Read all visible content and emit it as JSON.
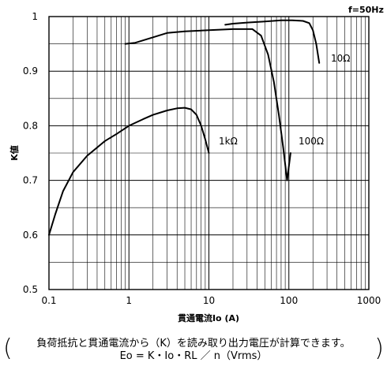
{
  "chart_data": {
    "type": "line",
    "x_scale": "log",
    "xlim": [
      0.1,
      1000
    ],
    "ylim": [
      0.5,
      1.0
    ],
    "xlabel": "貫通電流Io (A)",
    "ylabel": "K値",
    "x_tick_labels": [
      "0.1",
      "1",
      "10",
      "100",
      "1000"
    ],
    "y_tick_labels": [
      "0.5",
      "0.6",
      "0.7",
      "0.8",
      "0.9",
      "1"
    ],
    "grid": true,
    "annotation": "f=50Hz",
    "series": [
      {
        "name": "10Ω",
        "x": [
          16,
          20,
          30,
          50,
          80,
          110,
          150,
          180,
          200,
          220,
          240
        ],
        "y": [
          0.985,
          0.987,
          0.989,
          0.991,
          0.993,
          0.993,
          0.992,
          0.988,
          0.975,
          0.95,
          0.915
        ]
      },
      {
        "name": "100Ω",
        "x": [
          0.9,
          1.2,
          2,
          3,
          5,
          10,
          20,
          35,
          45,
          55,
          65,
          75,
          85,
          95,
          105
        ],
        "y": [
          0.95,
          0.952,
          0.962,
          0.97,
          0.973,
          0.975,
          0.977,
          0.977,
          0.965,
          0.93,
          0.88,
          0.82,
          0.76,
          0.7,
          0.75
        ]
      },
      {
        "name": "1kΩ",
        "x": [
          0.1,
          0.12,
          0.15,
          0.2,
          0.3,
          0.5,
          0.7,
          1,
          1.5,
          2,
          3,
          4,
          5,
          6,
          7,
          8,
          9,
          10
        ],
        "y": [
          0.6,
          0.638,
          0.68,
          0.715,
          0.745,
          0.772,
          0.785,
          0.8,
          0.812,
          0.82,
          0.828,
          0.832,
          0.833,
          0.83,
          0.82,
          0.8,
          0.775,
          0.75
        ]
      }
    ]
  },
  "series_labels": [
    "10Ω",
    "100Ω",
    "1kΩ"
  ],
  "notes": {
    "line1": "負荷抵抗と貫通電流から（K）を読み取り出力電圧が計算できます。",
    "line2": "Eo = K・Io・RL ／ n（Vrms）",
    "open_paren": "(",
    "close_paren": ")"
  }
}
